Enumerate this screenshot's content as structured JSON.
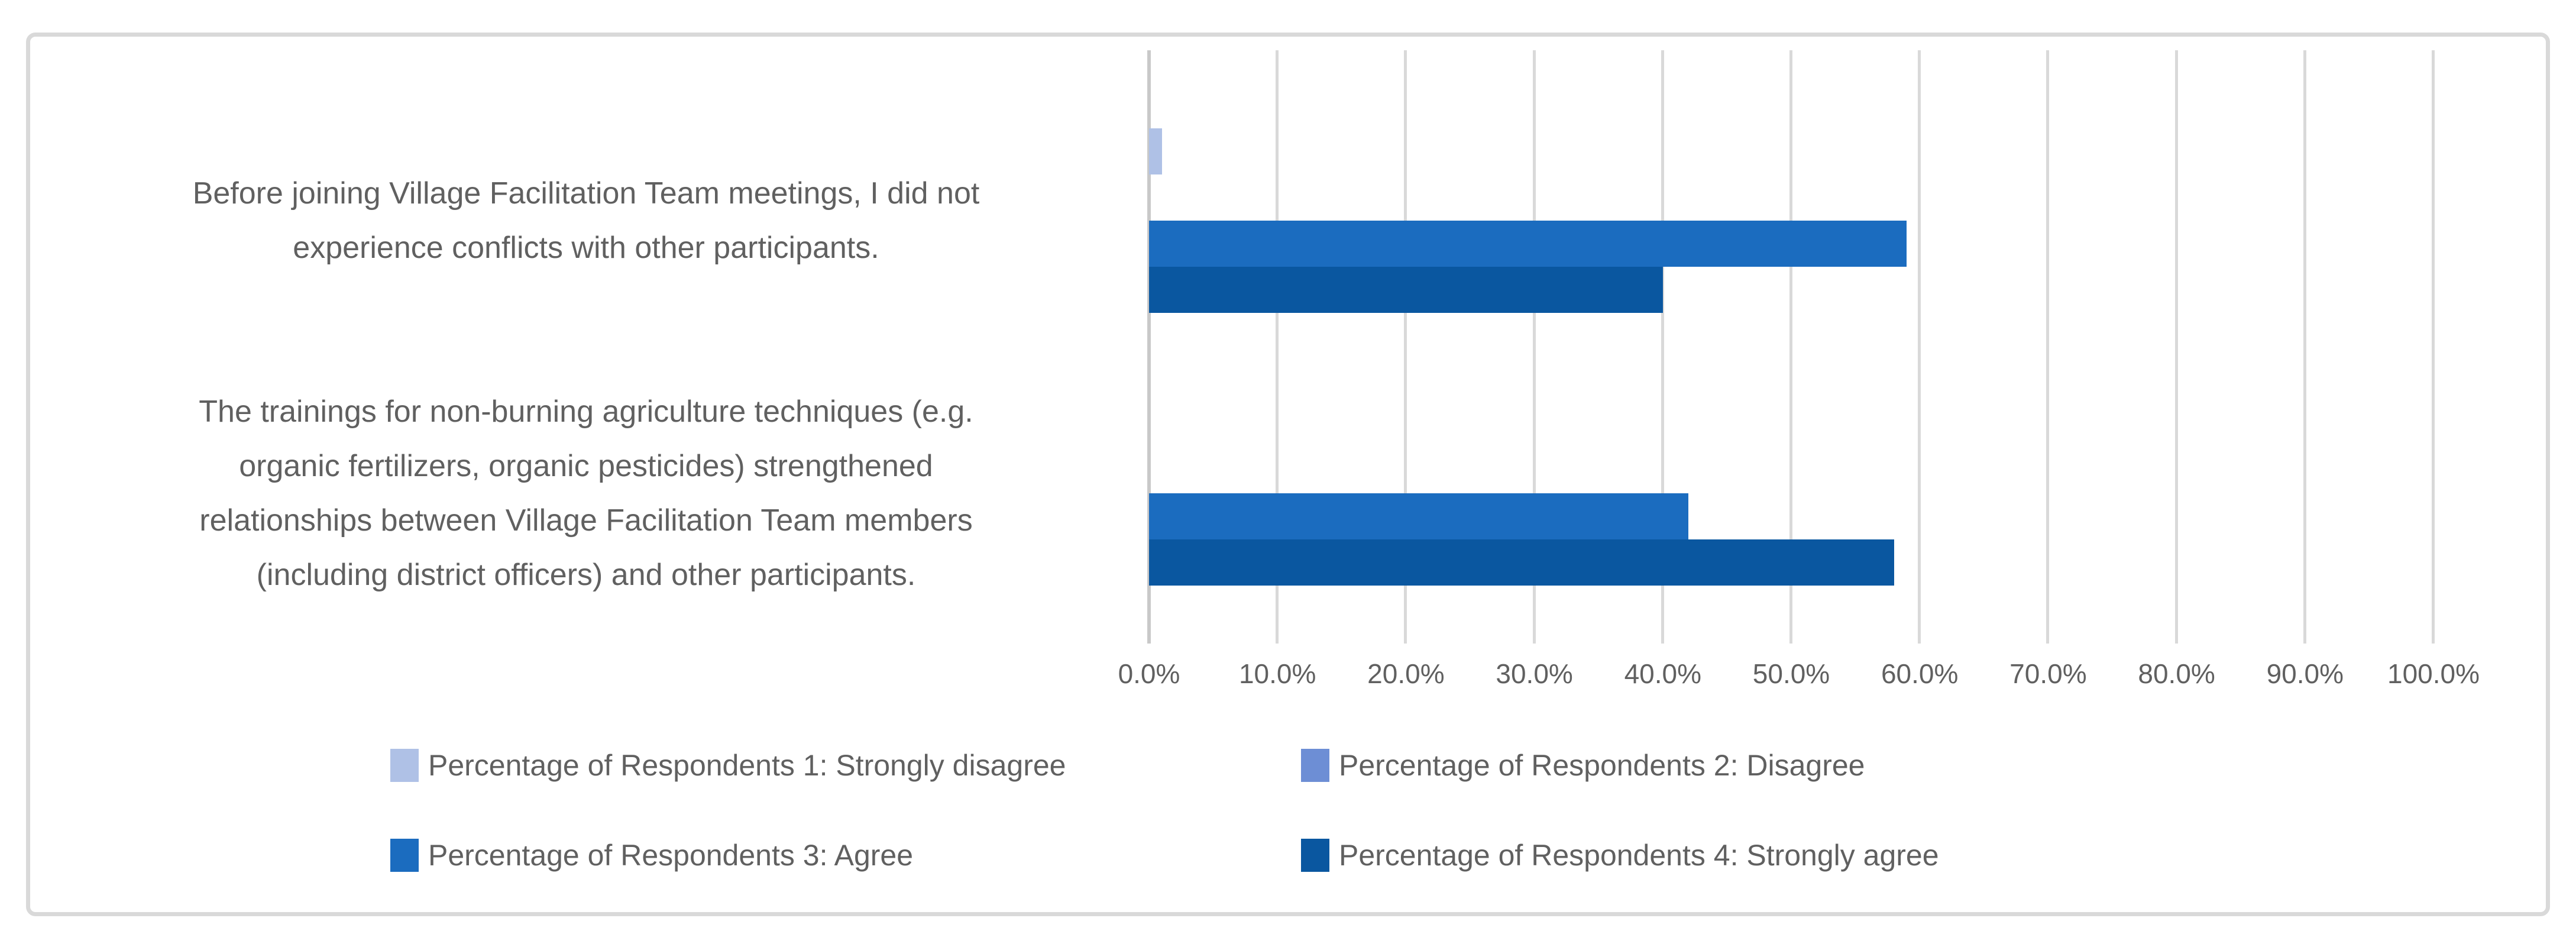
{
  "chart_data": {
    "type": "bar",
    "orientation": "horizontal",
    "title": "",
    "categories": [
      {
        "label": "Before joining Village Facilitation Team meetings, I did not experience conflicts with other participants.",
        "lines": [
          "Before joining Village Facilitation Team meetings, I did not",
          "experience conflicts with other participants."
        ]
      },
      {
        "label": "The trainings for non-burning agriculture techniques (e.g. organic fertilizers, organic pesticides) strengthened relationships between Village Facilitation Team members (including district officers) and other participants.",
        "lines": [
          "The trainings for non-burning agriculture techniques (e.g.",
          "organic fertilizers, organic pesticides) strengthened",
          "relationships between Village Facilitation Team members",
          "(including district officers) and other participants."
        ]
      }
    ],
    "series": [
      {
        "name": "Percentage of Respondents 1: Strongly disagree",
        "color": "#AFC1E6",
        "values": [
          1,
          0
        ]
      },
      {
        "name": "Percentage of Respondents 2: Disagree",
        "color": "#6D8ED5",
        "values": [
          0,
          0
        ]
      },
      {
        "name": "Percentage of Respondents 3: Agree",
        "color": "#1B6CBF",
        "values": [
          59,
          42
        ]
      },
      {
        "name": "Percentage of Respondents 4: Strongly agree",
        "color": "#0A57A0",
        "values": [
          40,
          58
        ]
      }
    ],
    "x_ticks": [
      "0.0%",
      "10.0%",
      "20.0%",
      "30.0%",
      "40.0%",
      "50.0%",
      "60.0%",
      "70.0%",
      "80.0%",
      "90.0%",
      "100.0%"
    ],
    "xlim": [
      0,
      100
    ],
    "grid": true,
    "legend_position": "bottom",
    "legend_layout": "2x2"
  },
  "style": {
    "text_color": "#606060",
    "gridline_color": "#D9D9D9",
    "axis_line_color": "#C9C9C9",
    "border_color": "#D9D9D9",
    "background": "#FFFFFF"
  }
}
